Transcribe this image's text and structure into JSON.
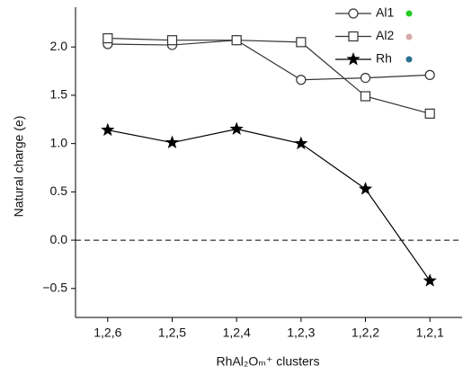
{
  "chart_data": {
    "type": "line",
    "y_label": "Natural charge (e)",
    "x_label": "RhAl₂Oₘ⁺ clusters",
    "categories": [
      "1,2,6",
      "1,2,5",
      "1,2,4",
      "1,2,3",
      "1,2,2",
      "1,2,1"
    ],
    "series": [
      {
        "name": "Al1",
        "color": "#333333",
        "marker": "circle",
        "values": [
          2.03,
          2.02,
          2.07,
          1.66,
          1.68,
          1.71
        ]
      },
      {
        "name": "Al2",
        "color": "#333333",
        "marker": "square",
        "values": [
          2.09,
          2.07,
          2.07,
          2.05,
          1.49,
          1.31
        ]
      },
      {
        "name": "Rh",
        "color": "#000000",
        "marker": "star",
        "values": [
          1.14,
          1.01,
          1.15,
          1.0,
          0.53,
          -0.42
        ]
      }
    ],
    "ylim": [
      -0.8,
      2.3
    ],
    "yticks": [
      {
        "value": -0.5,
        "label": "−0.5"
      },
      {
        "value": 0,
        "label": "0.0"
      },
      0.5,
      {
        "value": 1,
        "label": "1.0"
      },
      1.5,
      {
        "value": 2,
        "label": "2.0"
      }
    ],
    "reference_line": 0,
    "legend": "top-right"
  }
}
